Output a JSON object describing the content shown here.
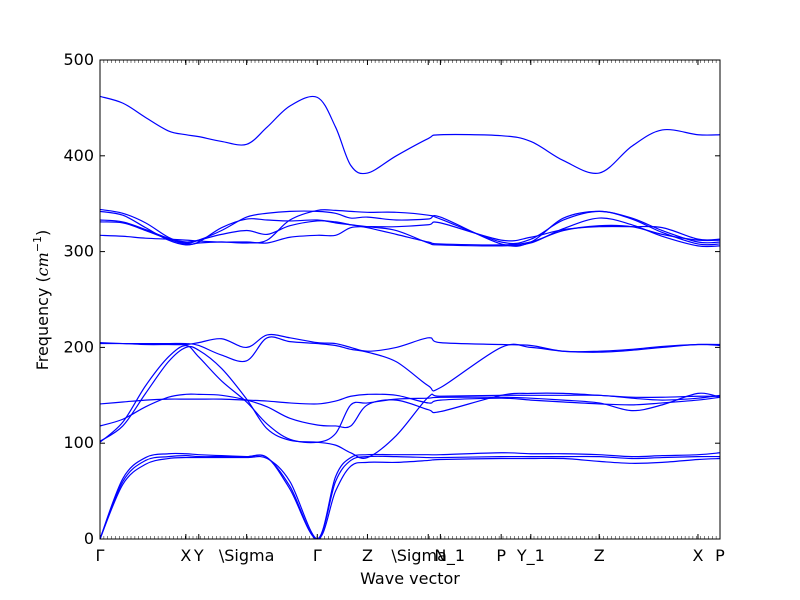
{
  "chart_data": {
    "type": "line",
    "xlabel": "Wave vector",
    "ylabel": {
      "text": "Frequency (",
      "unit_italic": "cm",
      "unit_sup": "−1",
      "close": ")"
    },
    "ylim": [
      0,
      500
    ],
    "yticks": [
      0,
      100,
      200,
      300,
      400,
      500
    ],
    "xlim": [
      0,
      8.16
    ],
    "special_points": [
      {
        "label": "Γ",
        "x": 0
      },
      {
        "label": "X",
        "x": 1.13
      },
      {
        "label": "Y",
        "x": 1.3
      },
      {
        "label": "\\Sigma",
        "x": 1.93
      },
      {
        "label": "Γ",
        "x": 2.86
      },
      {
        "label": "Z",
        "x": 3.52
      },
      {
        "label": "\\Sigma_1",
        "x": 4.32
      },
      {
        "label": "N",
        "x": 4.48
      },
      {
        "label": "P",
        "x": 5.28
      },
      {
        "label": "Y_1",
        "x": 5.67
      },
      {
        "label": "Z",
        "x": 6.57
      },
      {
        "label": "X",
        "x": 7.87
      },
      {
        "label": "P",
        "x": 8.16
      }
    ],
    "series_color": "#0000ff",
    "series": [
      {
        "x": [
          0,
          0.3,
          0.6,
          0.9,
          1.13,
          1.3,
          1.6,
          1.93,
          2.2,
          2.5,
          2.86,
          3.1,
          3.3,
          3.52,
          3.9,
          4.32,
          4.48,
          5.28,
          5.67,
          6.1,
          6.57,
          7.0,
          7.4,
          7.87,
          8.16
        ],
        "y": [
          0,
          57,
          78,
          84,
          85,
          85,
          85,
          85,
          84,
          60,
          0,
          50,
          76,
          80,
          80,
          82,
          83,
          84,
          84,
          84,
          81,
          79,
          80,
          83,
          84
        ]
      },
      {
        "x": [
          0,
          0.3,
          0.6,
          0.9,
          1.13,
          1.3,
          1.6,
          1.93,
          2.2,
          2.5,
          2.86,
          3.1,
          3.3,
          3.52,
          3.9,
          4.32,
          4.48,
          5.28,
          5.67,
          6.1,
          6.57,
          7.0,
          7.4,
          7.87,
          8.16
        ],
        "y": [
          0,
          60,
          82,
          86,
          87,
          86,
          86,
          86,
          85,
          52,
          0,
          60,
          82,
          86,
          86,
          85,
          85,
          86,
          86,
          86,
          86,
          84,
          85,
          86,
          86
        ]
      },
      {
        "x": [
          0,
          0.3,
          0.6,
          0.9,
          1.13,
          1.3,
          1.6,
          1.93,
          2.2,
          2.5,
          2.86,
          3.1,
          3.3,
          3.52,
          3.9,
          4.32,
          4.48,
          5.28,
          5.67,
          6.1,
          6.57,
          7.0,
          7.4,
          7.87,
          8.16
        ],
        "y": [
          0,
          63,
          85,
          89,
          89,
          88,
          87,
          86,
          85,
          55,
          0,
          65,
          85,
          88,
          88,
          88,
          88,
          90,
          89,
          89,
          88,
          86,
          87,
          88,
          90
        ]
      },
      {
        "x": [
          0,
          0.3,
          0.6,
          0.9,
          1.13,
          1.3,
          1.6,
          1.93,
          2.2,
          2.5,
          2.86,
          3.1,
          3.3,
          3.52,
          3.9,
          4.32,
          4.48,
          5.28,
          5.67,
          6.1,
          6.57,
          7.0,
          7.4,
          7.87,
          8.16
        ],
        "y": [
          102,
          118,
          152,
          185,
          200,
          197,
          178,
          146,
          115,
          103,
          101,
          98,
          90,
          85,
          108,
          148,
          149,
          150,
          150,
          150,
          150,
          147,
          145,
          147,
          150
        ]
      },
      {
        "x": [
          0,
          0.3,
          0.6,
          0.9,
          1.13,
          1.3,
          1.6,
          1.93,
          2.2,
          2.5,
          2.86,
          3.1,
          3.3,
          3.52,
          3.9,
          4.32,
          4.48,
          5.28,
          5.67,
          6.1,
          6.57,
          7.0,
          7.4,
          7.87,
          8.16
        ],
        "y": [
          101,
          122,
          160,
          190,
          202,
          190,
          165,
          143,
          120,
          104,
          101,
          110,
          140,
          142,
          146,
          147,
          148,
          148,
          147,
          145,
          142,
          134,
          140,
          152,
          148
        ]
      },
      {
        "x": [
          0,
          0.3,
          0.6,
          0.9,
          1.13,
          1.3,
          1.6,
          1.93,
          2.2,
          2.5,
          2.86,
          3.1,
          3.3,
          3.52,
          3.9,
          4.32,
          4.48,
          5.28,
          5.67,
          6.1,
          6.57,
          7.0,
          7.4,
          7.87,
          8.16
        ],
        "y": [
          118,
          125,
          138,
          148,
          151,
          151,
          150,
          145,
          138,
          126,
          119,
          118,
          118,
          140,
          145,
          135,
          133,
          150,
          152,
          152,
          150,
          148,
          148,
          149,
          149
        ]
      },
      {
        "x": [
          0,
          0.3,
          0.6,
          0.9,
          1.13,
          1.3,
          1.6,
          1.93,
          2.2,
          2.5,
          2.86,
          3.1,
          3.3,
          3.52,
          3.9,
          4.32,
          4.48,
          5.28,
          5.67,
          6.1,
          6.57,
          7.0,
          7.4,
          7.87,
          8.16
        ],
        "y": [
          141,
          143,
          145,
          146,
          146,
          146,
          146,
          145,
          144,
          142,
          141,
          144,
          149,
          151,
          150,
          142,
          145,
          147,
          145,
          143,
          141,
          140,
          142,
          145,
          148
        ]
      },
      {
        "x": [
          0,
          0.3,
          0.6,
          0.9,
          1.13,
          1.3,
          1.6,
          1.93,
          2.2,
          2.5,
          2.86,
          3.1,
          3.3,
          3.52,
          3.9,
          4.32,
          4.48,
          5.28,
          5.67,
          6.1,
          6.57,
          7.0,
          7.4,
          7.87,
          8.16
        ],
        "y": [
          205,
          204,
          204,
          204,
          204,
          202,
          192,
          186,
          210,
          206,
          204,
          202,
          198,
          195,
          185,
          160,
          158,
          200,
          200,
          196,
          195,
          197,
          200,
          203,
          202
        ]
      },
      {
        "x": [
          0,
          0.3,
          0.6,
          0.9,
          1.13,
          1.3,
          1.6,
          1.93,
          2.2,
          2.5,
          2.86,
          3.1,
          3.3,
          3.52,
          3.9,
          4.32,
          4.48,
          5.28,
          5.67,
          6.1,
          6.57,
          7.0,
          7.4,
          7.87,
          8.16
        ],
        "y": [
          204,
          204,
          203,
          203,
          203,
          205,
          209,
          200,
          213,
          210,
          205,
          204,
          200,
          196,
          200,
          210,
          205,
          203,
          202,
          196,
          196,
          198,
          201,
          203,
          203
        ]
      },
      {
        "x": [
          0,
          0.3,
          0.6,
          0.9,
          1.13,
          1.3,
          1.6,
          1.93,
          2.2,
          2.5,
          2.86,
          3.1,
          3.3,
          3.52,
          3.9,
          4.32,
          4.48,
          5.28,
          5.67,
          6.1,
          6.57,
          7.0,
          7.4,
          7.87,
          8.16
        ],
        "y": [
          342,
          338,
          325,
          312,
          307,
          309,
          310,
          309,
          312,
          333,
          343,
          343,
          342,
          341,
          341,
          338,
          334,
          310,
          313,
          333,
          342,
          334,
          320,
          308,
          308
        ]
      },
      {
        "x": [
          0,
          0.3,
          0.6,
          0.9,
          1.13,
          1.3,
          1.6,
          1.93,
          2.2,
          2.5,
          2.86,
          3.1,
          3.3,
          3.52,
          3.9,
          4.32,
          4.48,
          5.28,
          5.67,
          6.1,
          6.57,
          7.0,
          7.4,
          7.87,
          8.16
        ],
        "y": [
          344,
          340,
          330,
          315,
          309,
          312,
          322,
          336,
          340,
          342,
          342,
          340,
          335,
          336,
          333,
          334,
          336,
          308,
          310,
          335,
          342,
          335,
          322,
          310,
          310
        ]
      },
      {
        "x": [
          0,
          0.3,
          0.6,
          0.9,
          1.13,
          1.3,
          1.6,
          1.93,
          2.2,
          2.5,
          2.86,
          3.1,
          3.3,
          3.52,
          3.9,
          4.32,
          4.48,
          5.28,
          5.67,
          6.1,
          6.57,
          7.0,
          7.4,
          7.87,
          8.16
        ],
        "y": [
          333,
          331,
          323,
          314,
          310,
          312,
          318,
          322,
          318,
          327,
          332,
          331,
          328,
          325,
          318,
          310,
          308,
          307,
          310,
          322,
          327,
          326,
          318,
          312,
          312
        ]
      },
      {
        "x": [
          0,
          0.3,
          0.6,
          0.9,
          1.13,
          1.3,
          1.6,
          1.93,
          2.2,
          2.5,
          2.86,
          3.1,
          3.3,
          3.52,
          3.9,
          4.32,
          4.48,
          5.28,
          5.67,
          6.1,
          6.57,
          7.0,
          7.4,
          7.87,
          8.16
        ],
        "y": [
          331,
          330,
          322,
          313,
          308,
          310,
          325,
          334,
          333,
          332,
          333,
          330,
          328,
          326,
          322,
          309,
          307,
          306,
          309,
          324,
          335,
          328,
          316,
          306,
          306
        ]
      },
      {
        "x": [
          0,
          0.3,
          0.6,
          0.9,
          1.13,
          1.3,
          1.6,
          1.93,
          2.2,
          2.5,
          2.86,
          3.1,
          3.3,
          3.52,
          3.9,
          4.32,
          4.48,
          5.28,
          5.67,
          6.1,
          6.57,
          7.0,
          7.4,
          7.87,
          8.16
        ],
        "y": [
          317,
          316,
          314,
          313,
          312,
          311,
          310,
          310,
          309,
          315,
          317,
          317,
          325,
          326,
          326,
          328,
          330,
          312,
          315,
          323,
          326,
          326,
          325,
          313,
          313
        ]
      },
      {
        "x": [
          0,
          0.3,
          0.6,
          0.9,
          1.13,
          1.3,
          1.6,
          1.93,
          2.2,
          2.5,
          2.86,
          3.1,
          3.3,
          3.52,
          3.9,
          4.32,
          4.48,
          5.28,
          5.67,
          6.1,
          6.57,
          7.0,
          7.4,
          7.87,
          8.16
        ],
        "y": [
          462,
          455,
          440,
          426,
          422,
          420,
          415,
          412,
          430,
          452,
          461,
          430,
          390,
          382,
          400,
          418,
          422,
          421,
          415,
          395,
          382,
          410,
          427,
          422,
          422
        ]
      }
    ]
  }
}
